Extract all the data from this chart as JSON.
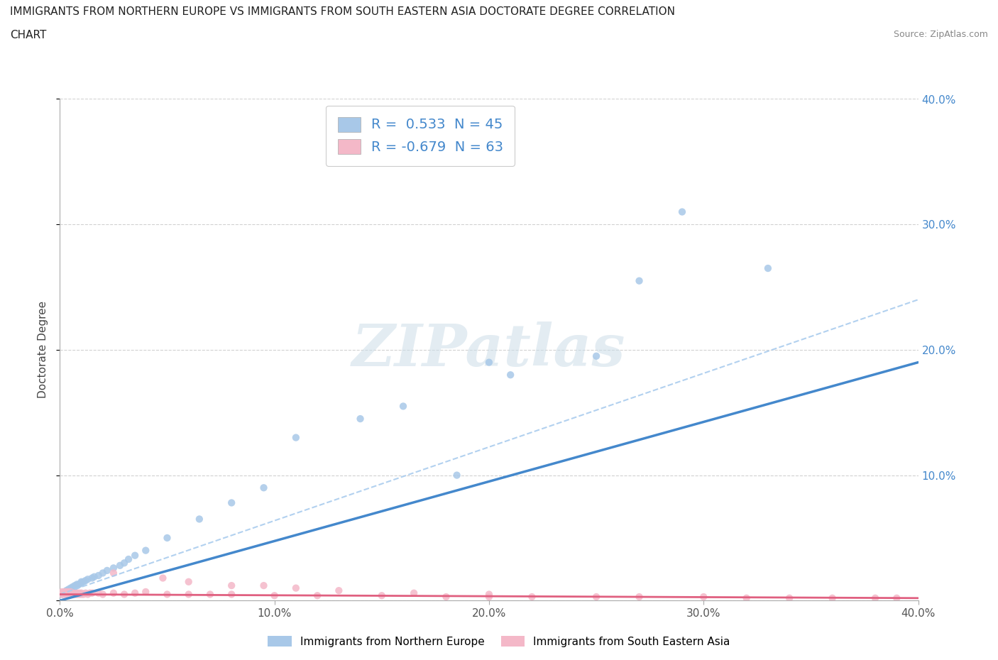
{
  "title_line1": "IMMIGRANTS FROM NORTHERN EUROPE VS IMMIGRANTS FROM SOUTH EASTERN ASIA DOCTORATE DEGREE CORRELATION",
  "title_line2": "CHART",
  "source": "Source: ZipAtlas.com",
  "ylabel": "Doctorate Degree",
  "xlim": [
    0.0,
    0.4
  ],
  "ylim": [
    0.0,
    0.4
  ],
  "xticks": [
    0.0,
    0.1,
    0.2,
    0.3,
    0.4
  ],
  "yticks": [
    0.0,
    0.1,
    0.2,
    0.3,
    0.4
  ],
  "xticklabels": [
    "0.0%",
    "10.0%",
    "20.0%",
    "30.0%",
    "40.0%"
  ],
  "yticklabels": [
    "",
    "10.0%",
    "20.0%",
    "30.0%",
    "40.0%"
  ],
  "blue_color": "#a8c8e8",
  "pink_color": "#f4b8c8",
  "blue_line_color": "#4488cc",
  "pink_line_color": "#e06080",
  "pink_line_style": "-",
  "blue_line_dash": "--",
  "R_blue": 0.533,
  "N_blue": 45,
  "R_pink": -0.679,
  "N_pink": 63,
  "legend_label_blue": "Immigrants from Northern Europe",
  "legend_label_pink": "Immigrants from South Eastern Asia",
  "watermark": "ZIPatlas",
  "blue_x": [
    0.001,
    0.002,
    0.003,
    0.003,
    0.004,
    0.004,
    0.005,
    0.005,
    0.006,
    0.006,
    0.007,
    0.007,
    0.008,
    0.008,
    0.009,
    0.01,
    0.01,
    0.011,
    0.012,
    0.013,
    0.015,
    0.016,
    0.018,
    0.02,
    0.022,
    0.025,
    0.028,
    0.03,
    0.032,
    0.035,
    0.04,
    0.05,
    0.065,
    0.08,
    0.095,
    0.11,
    0.14,
    0.16,
    0.185,
    0.21,
    0.25,
    0.29,
    0.33,
    0.2,
    0.27
  ],
  "blue_y": [
    0.005,
    0.006,
    0.007,
    0.008,
    0.008,
    0.009,
    0.009,
    0.01,
    0.01,
    0.011,
    0.011,
    0.012,
    0.012,
    0.013,
    0.013,
    0.014,
    0.015,
    0.015,
    0.016,
    0.017,
    0.018,
    0.019,
    0.02,
    0.022,
    0.024,
    0.026,
    0.028,
    0.03,
    0.033,
    0.036,
    0.04,
    0.05,
    0.065,
    0.078,
    0.09,
    0.13,
    0.145,
    0.155,
    0.1,
    0.18,
    0.195,
    0.31,
    0.265,
    0.19,
    0.255
  ],
  "pink_x": [
    0.001,
    0.001,
    0.001,
    0.002,
    0.002,
    0.002,
    0.003,
    0.003,
    0.003,
    0.004,
    0.004,
    0.004,
    0.005,
    0.005,
    0.005,
    0.006,
    0.006,
    0.007,
    0.007,
    0.008,
    0.008,
    0.009,
    0.009,
    0.01,
    0.01,
    0.011,
    0.012,
    0.013,
    0.014,
    0.015,
    0.018,
    0.02,
    0.025,
    0.03,
    0.035,
    0.04,
    0.05,
    0.06,
    0.07,
    0.08,
    0.1,
    0.12,
    0.15,
    0.18,
    0.2,
    0.22,
    0.25,
    0.27,
    0.3,
    0.32,
    0.34,
    0.36,
    0.38,
    0.39,
    0.025,
    0.048,
    0.06,
    0.08,
    0.095,
    0.11,
    0.13,
    0.165,
    0.2
  ],
  "pink_y": [
    0.005,
    0.006,
    0.007,
    0.005,
    0.006,
    0.007,
    0.005,
    0.006,
    0.007,
    0.005,
    0.006,
    0.007,
    0.005,
    0.006,
    0.007,
    0.005,
    0.006,
    0.005,
    0.006,
    0.005,
    0.006,
    0.005,
    0.006,
    0.005,
    0.006,
    0.005,
    0.006,
    0.005,
    0.006,
    0.006,
    0.006,
    0.005,
    0.006,
    0.005,
    0.006,
    0.007,
    0.005,
    0.005,
    0.005,
    0.005,
    0.004,
    0.004,
    0.004,
    0.003,
    0.003,
    0.003,
    0.003,
    0.003,
    0.003,
    0.002,
    0.002,
    0.002,
    0.002,
    0.002,
    0.022,
    0.018,
    0.015,
    0.012,
    0.012,
    0.01,
    0.008,
    0.006,
    0.005
  ]
}
